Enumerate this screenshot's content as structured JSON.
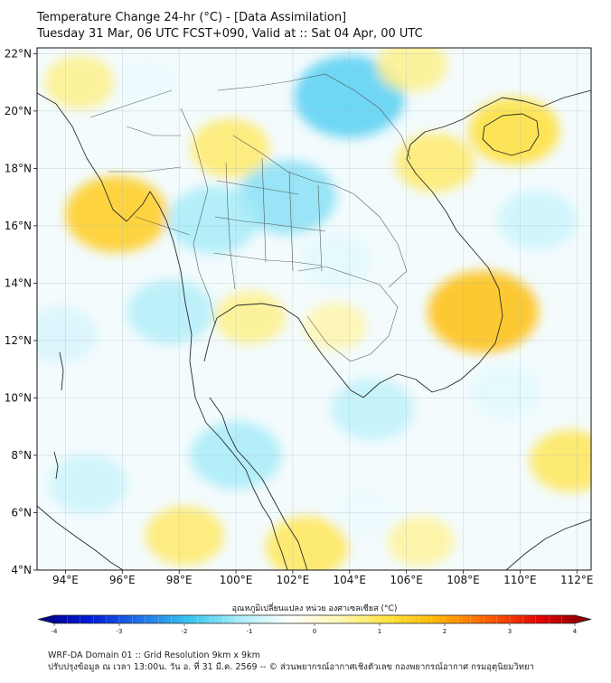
{
  "title": {
    "line1": "Temperature Change 24-hr (°C) - [Data Assimilation]",
    "line2": "Tuesday 31 Mar, 06 UTC FCST+090, Valid at :: Sat 04 Apr, 00 UTC"
  },
  "map": {
    "lon_range": [
      93,
      112.5
    ],
    "lat_range": [
      4,
      22.2
    ],
    "lon_ticks": [
      "94°E",
      "96°E",
      "98°E",
      "100°E",
      "102°E",
      "104°E",
      "106°E",
      "108°E",
      "110°E",
      "112°E"
    ],
    "lat_ticks": [
      "22°N",
      "20°N",
      "18°N",
      "16°N",
      "14°N",
      "12°N",
      "10°N",
      "8°N",
      "6°N",
      "4°N"
    ],
    "lon_values": [
      94,
      96,
      98,
      100,
      102,
      104,
      106,
      108,
      110,
      112
    ],
    "lat_values": [
      22,
      20,
      18,
      16,
      14,
      12,
      10,
      8,
      6,
      4
    ],
    "field_blobs": [
      {
        "lon": 104.0,
        "lat": 20.5,
        "value": -1.6
      },
      {
        "lon": 101.8,
        "lat": 17.0,
        "value": -1.3
      },
      {
        "lon": 99.2,
        "lat": 16.2,
        "value": -1.1
      },
      {
        "lon": 97.7,
        "lat": 13.0,
        "value": -1.0
      },
      {
        "lon": 100.0,
        "lat": 8.0,
        "value": -1.1
      },
      {
        "lon": 104.8,
        "lat": 9.6,
        "value": -0.9
      },
      {
        "lon": 103.5,
        "lat": 14.8,
        "value": -0.6
      },
      {
        "lon": 110.6,
        "lat": 16.2,
        "value": -0.8
      },
      {
        "lon": 109.5,
        "lat": 10.2,
        "value": -0.6
      },
      {
        "lon": 93.8,
        "lat": 12.2,
        "value": -0.7
      },
      {
        "lon": 94.8,
        "lat": 7.0,
        "value": -0.8
      },
      {
        "lon": 104.5,
        "lat": 6.0,
        "value": -0.5
      },
      {
        "lon": 96.8,
        "lat": 21.0,
        "value": -0.5
      },
      {
        "lon": 95.8,
        "lat": 16.4,
        "value": 1.4
      },
      {
        "lon": 108.7,
        "lat": 13.0,
        "value": 1.6
      },
      {
        "lon": 109.8,
        "lat": 19.3,
        "value": 1.1
      },
      {
        "lon": 107.0,
        "lat": 18.2,
        "value": 0.8
      },
      {
        "lon": 99.8,
        "lat": 18.7,
        "value": 0.8
      },
      {
        "lon": 100.5,
        "lat": 12.8,
        "value": 0.6
      },
      {
        "lon": 102.5,
        "lat": 4.8,
        "value": 0.9
      },
      {
        "lon": 98.2,
        "lat": 5.2,
        "value": 0.8
      },
      {
        "lon": 106.2,
        "lat": 21.6,
        "value": 0.6
      },
      {
        "lon": 111.8,
        "lat": 7.8,
        "value": 0.9
      },
      {
        "lon": 106.5,
        "lat": 5.0,
        "value": 0.5
      },
      {
        "lon": 94.5,
        "lat": 21.0,
        "value": 0.6
      },
      {
        "lon": 103.5,
        "lat": 12.5,
        "value": 0.4
      }
    ]
  },
  "colorbar": {
    "label": "อุณหภูมิเปลี่ยนแปลง หน่วย องศาเซลเซียส (°C)",
    "min": -4,
    "max": 4,
    "ticks": [
      "-4",
      "-3",
      "-2",
      "-1",
      "0",
      "1",
      "2",
      "3",
      "4"
    ],
    "tick_values": [
      -4,
      -3,
      -2,
      -1,
      0,
      1,
      2,
      3,
      4
    ],
    "stops": [
      "#00007a",
      "#0019d6",
      "#1f6fe8",
      "#36c4ef",
      "#a9ecf8",
      "#ffffff",
      "#fff7b2",
      "#ffe23a",
      "#ffb000",
      "#ff5a00",
      "#e00000",
      "#7a0000"
    ]
  },
  "footer": {
    "line1": "WRF-DA Domain 01 :: Grid Resolution 9km x 9km",
    "line2": "ปรับปรุงข้อมูล ณ เวลา 13:00น. วัน อ. ที่ 31 มี.ค. 2569 -- © ส่วนพยากรณ์อากาศเชิงตัวเลข กองพยากรณ์อากาศ กรมอุตุนิยมวิทยา"
  }
}
